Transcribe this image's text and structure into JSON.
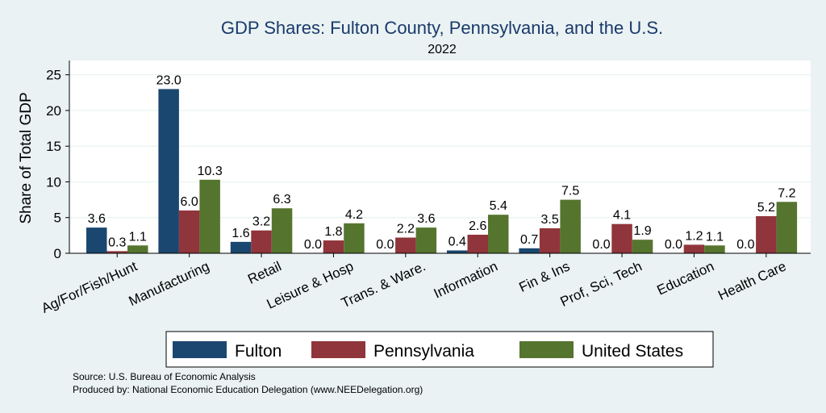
{
  "chart_data": {
    "type": "bar",
    "title": "GDP Shares: Fulton County, Pennsylvania, and the U.S.",
    "subtitle": "2022",
    "ylabel": "Share of Total GDP",
    "xlabel": "",
    "ylim": [
      0,
      27
    ],
    "yticks": [
      0,
      5,
      10,
      15,
      20,
      25
    ],
    "grid": true,
    "legend_position": "bottom",
    "categories": [
      "Ag/For/Fish/Hunt",
      "Manufacturing",
      "Retail",
      "Leisure & Hosp",
      "Trans. & Ware.",
      "Information",
      "Fin & Ins",
      "Prof, Sci, Tech",
      "Education",
      "Health Care"
    ],
    "series": [
      {
        "name": "Fulton",
        "color": "#1a476f",
        "values": [
          3.6,
          23.0,
          1.6,
          0.0,
          0.0,
          0.4,
          0.7,
          0.0,
          0.0,
          0.0
        ],
        "labels": [
          "3.6",
          "23.0",
          "1.6",
          "0.0",
          "0.0",
          "0.4",
          "0.7",
          "0.0",
          "0.0",
          "0.0"
        ]
      },
      {
        "name": "Pennsylvania",
        "color": "#90353b",
        "values": [
          0.3,
          6.0,
          3.2,
          1.8,
          2.2,
          2.6,
          3.5,
          4.1,
          1.2,
          5.2
        ],
        "labels": [
          "0.3",
          "6.0",
          "3.2",
          "1.8",
          "2.2",
          "2.6",
          "3.5",
          "4.1",
          "1.2",
          "5.2"
        ]
      },
      {
        "name": "United States",
        "color": "#55752f",
        "values": [
          1.1,
          10.3,
          6.3,
          4.2,
          3.6,
          5.4,
          7.5,
          1.9,
          1.1,
          7.2
        ],
        "labels": [
          "1.1",
          "10.3",
          "6.3",
          "4.2",
          "3.6",
          "5.4",
          "7.5",
          "1.9",
          "1.1",
          "7.2"
        ]
      }
    ]
  },
  "notes": {
    "source": "Source: U.S. Bureau of Economic Analysis",
    "produced_by": "Produced by: National Economic Education Delegation (www.NEEDelegation.org)"
  }
}
